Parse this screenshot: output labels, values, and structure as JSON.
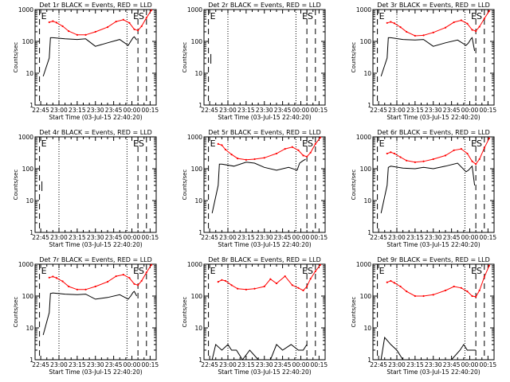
{
  "chart_data": [
    {
      "type": "line",
      "title": "Det 1r BLACK = Events, RED = LLD",
      "xlabel": "Start Time (03-Jul-15 22:40:20)",
      "ylabel": "Counts/sec",
      "yscale": "log",
      "ylim": [
        1,
        1000
      ],
      "xlim": [
        "22:40:20",
        "00:20:00"
      ],
      "x_ticks": [
        "22:45",
        "23:00",
        "23:15",
        "23:30",
        "23:45",
        "00:00",
        "00:15"
      ],
      "y_ticks": [
        "1",
        "10",
        "100",
        "1000"
      ],
      "dotted_lines": [
        "23:00",
        "23:56"
      ],
      "dashed_lines": [
        "22:44",
        "00:05",
        "00:12"
      ],
      "annotations": [
        "E",
        "ES"
      ],
      "series": [
        {
          "color": "#000000",
          "x": [
            "22:47",
            "22:52",
            "22:53",
            "22:55",
            "23:05",
            "23:15",
            "23:22",
            "23:30",
            "23:40",
            "23:50",
            "23:57",
            "23:59",
            "00:01",
            "00:02",
            "00:04"
          ],
          "values": [
            8,
            30,
            130,
            130,
            120,
            115,
            120,
            70,
            90,
            115,
            75,
            100,
            130,
            140,
            110
          ]
        },
        {
          "color": "#ff0000",
          "x": [
            "22:52",
            "22:55",
            "22:58",
            "23:03",
            "23:08",
            "23:15",
            "23:22",
            "23:30",
            "23:40",
            "23:47",
            "23:53",
            "23:58",
            "00:02",
            "00:05",
            "00:08",
            "00:12",
            "00:16"
          ],
          "values": [
            400,
            430,
            390,
            300,
            210,
            160,
            160,
            200,
            280,
            420,
            480,
            380,
            240,
            220,
            300,
            550,
            950
          ]
        }
      ]
    },
    {
      "type": "line",
      "title": "Det 2r BLACK = Events, RED = LLD",
      "xlabel": "Start Time (03-Jul-15 22:40:20)",
      "ylabel": "Counts/sec",
      "yscale": "log",
      "ylim": [
        1,
        1000
      ],
      "xlim": [
        "22:40:20",
        "00:20:00"
      ],
      "x_ticks": [
        "22:45",
        "23:00",
        "23:15",
        "23:30",
        "23:45",
        "00:00",
        "00:15"
      ],
      "y_ticks": [
        "1",
        "10",
        "100",
        "1000"
      ],
      "dotted_lines": [
        "23:00",
        "23:56"
      ],
      "dashed_lines": [
        "22:44",
        "00:05",
        "00:12"
      ],
      "annotations": [
        "E",
        "ES"
      ],
      "series": [
        {
          "color": "#000000",
          "x": [
            "22:46",
            "22:46"
          ],
          "values": [
            20,
            40
          ]
        }
      ]
    },
    {
      "type": "line",
      "title": "Det 3r BLACK = Events, RED = LLD",
      "xlabel": "Start Time (03-Jul-15 22:40:20)",
      "ylabel": "Counts/sec",
      "yscale": "log",
      "ylim": [
        1,
        1000
      ],
      "xlim": [
        "22:40:20",
        "00:20:00"
      ],
      "x_ticks": [
        "22:45",
        "23:00",
        "23:15",
        "23:30",
        "23:45",
        "00:00",
        "00:15"
      ],
      "y_ticks": [
        "1",
        "10",
        "100",
        "1000"
      ],
      "dotted_lines": [
        "23:00",
        "23:56"
      ],
      "dashed_lines": [
        "22:44",
        "00:05",
        "00:12"
      ],
      "annotations": [
        "E",
        "ES"
      ],
      "series": [
        {
          "color": "#000000",
          "x": [
            "22:47",
            "22:52",
            "22:53",
            "22:55",
            "23:05",
            "23:15",
            "23:22",
            "23:30",
            "23:40",
            "23:50",
            "23:57",
            "23:59",
            "00:01",
            "00:02",
            "00:04"
          ],
          "values": [
            8,
            30,
            130,
            130,
            115,
            110,
            115,
            70,
            90,
            110,
            75,
            90,
            120,
            130,
            50
          ]
        },
        {
          "color": "#ff0000",
          "x": [
            "22:52",
            "22:55",
            "22:58",
            "23:03",
            "23:08",
            "23:15",
            "23:22",
            "23:30",
            "23:40",
            "23:47",
            "23:53",
            "23:58",
            "00:02",
            "00:05",
            "00:08",
            "00:12",
            "00:16"
          ],
          "values": [
            380,
            410,
            370,
            280,
            200,
            150,
            155,
            190,
            270,
            400,
            460,
            360,
            230,
            210,
            290,
            520,
            900
          ]
        }
      ]
    },
    {
      "type": "line",
      "title": "Det 4r BLACK = Events, RED = LLD",
      "xlabel": "Start Time (03-Jul-15 22:40:20)",
      "ylabel": "Counts/sec",
      "yscale": "log",
      "ylim": [
        1,
        1000
      ],
      "xlim": [
        "22:40:20",
        "00:20:00"
      ],
      "x_ticks": [
        "22:45",
        "23:00",
        "23:15",
        "23:30",
        "23:45",
        "00:00",
        "00:15"
      ],
      "y_ticks": [
        "1",
        "10",
        "100",
        "1000"
      ],
      "dotted_lines": [
        "23:00",
        "23:56"
      ],
      "dashed_lines": [
        "22:44",
        "00:05",
        "00:12"
      ],
      "annotations": [
        "E",
        "ES"
      ],
      "series": [
        {
          "color": "#000000",
          "x": [
            "22:46",
            "22:46"
          ],
          "values": [
            20,
            40
          ]
        }
      ]
    },
    {
      "type": "line",
      "title": "Det 5r BLACK = Events, RED = LLD",
      "xlabel": "Start Time (03-Jul-15 22:40:20)",
      "ylabel": "Counts/sec",
      "yscale": "log",
      "ylim": [
        1,
        1000
      ],
      "xlim": [
        "22:40:20",
        "00:20:00"
      ],
      "x_ticks": [
        "22:45",
        "23:00",
        "23:15",
        "23:30",
        "23:45",
        "00:00",
        "00:15"
      ],
      "y_ticks": [
        "1",
        "10",
        "100",
        "1000"
      ],
      "dotted_lines": [
        "23:00",
        "23:56"
      ],
      "dashed_lines": [
        "22:44",
        "00:05",
        "00:12"
      ],
      "annotations": [
        "E",
        "ES"
      ],
      "series": [
        {
          "color": "#000000",
          "x": [
            "22:47",
            "22:52",
            "22:53",
            "22:55",
            "23:05",
            "23:15",
            "23:22",
            "23:30",
            "23:40",
            "23:50",
            "23:57",
            "23:59",
            "00:01",
            "00:02",
            "00:04"
          ],
          "values": [
            4,
            30,
            140,
            140,
            120,
            160,
            150,
            110,
            90,
            110,
            90,
            150,
            170,
            180,
            200
          ]
        },
        {
          "color": "#ff0000",
          "x": [
            "22:52",
            "22:55",
            "22:58",
            "23:03",
            "23:08",
            "23:15",
            "23:22",
            "23:30",
            "23:40",
            "23:47",
            "23:53",
            "23:58",
            "00:02",
            "00:05",
            "00:08",
            "00:12",
            "00:16"
          ],
          "values": [
            600,
            550,
            400,
            280,
            210,
            190,
            200,
            220,
            300,
            420,
            480,
            380,
            260,
            240,
            320,
            600,
            950
          ]
        }
      ]
    },
    {
      "type": "line",
      "title": "Det 6r BLACK = Events, RED = LLD",
      "xlabel": "Start Time (03-Jul-15 22:40:20)",
      "ylabel": "Counts/sec",
      "yscale": "log",
      "ylim": [
        1,
        1000
      ],
      "xlim": [
        "22:40:20",
        "00:20:00"
      ],
      "x_ticks": [
        "22:45",
        "23:00",
        "23:15",
        "23:30",
        "23:45",
        "00:00",
        "00:15"
      ],
      "y_ticks": [
        "1",
        "10",
        "100",
        "1000"
      ],
      "dotted_lines": [
        "23:00",
        "23:56"
      ],
      "dashed_lines": [
        "22:44",
        "00:05",
        "00:12"
      ],
      "annotations": [
        "E",
        "ES"
      ],
      "series": [
        {
          "color": "#000000",
          "x": [
            "22:47",
            "22:52",
            "22:53",
            "22:55",
            "23:05",
            "23:15",
            "23:22",
            "23:30",
            "23:40",
            "23:50",
            "23:57",
            "23:59",
            "00:01",
            "00:02",
            "00:04"
          ],
          "values": [
            4,
            30,
            110,
            120,
            105,
            100,
            110,
            100,
            120,
            150,
            80,
            90,
            110,
            120,
            30
          ]
        },
        {
          "color": "#ff0000",
          "x": [
            "22:52",
            "22:55",
            "22:58",
            "23:03",
            "23:08",
            "23:15",
            "23:22",
            "23:30",
            "23:40",
            "23:47",
            "23:53",
            "23:58",
            "00:02",
            "00:05",
            "00:08",
            "00:12",
            "00:16"
          ],
          "values": [
            300,
            330,
            300,
            230,
            180,
            160,
            170,
            200,
            260,
            380,
            420,
            300,
            170,
            140,
            200,
            450,
            900
          ]
        }
      ]
    },
    {
      "type": "line",
      "title": "Det 7r BLACK = Events, RED = LLD",
      "xlabel": "Start Time (03-Jul-15 22:40:20)",
      "ylabel": "Counts/sec",
      "yscale": "log",
      "ylim": [
        1,
        1000
      ],
      "xlim": [
        "22:40:20",
        "00:20:00"
      ],
      "x_ticks": [
        "22:45",
        "23:00",
        "23:15",
        "23:30",
        "23:45",
        "00:00",
        "00:15"
      ],
      "y_ticks": [
        "1",
        "10",
        "100",
        "1000"
      ],
      "dotted_lines": [
        "23:00",
        "23:56"
      ],
      "dashed_lines": [
        "22:44",
        "00:05",
        "00:12"
      ],
      "annotations": [
        "E",
        "ES"
      ],
      "series": [
        {
          "color": "#000000",
          "x": [
            "22:47",
            "22:52",
            "22:53",
            "22:55",
            "23:05",
            "23:15",
            "23:22",
            "23:30",
            "23:40",
            "23:50",
            "23:57",
            "23:59",
            "00:01",
            "00:02",
            "00:04"
          ],
          "values": [
            6,
            30,
            120,
            125,
            115,
            110,
            115,
            80,
            90,
            110,
            80,
            100,
            130,
            140,
            100
          ]
        },
        {
          "color": "#ff0000",
          "x": [
            "22:52",
            "22:55",
            "22:58",
            "23:03",
            "23:08",
            "23:15",
            "23:22",
            "23:30",
            "23:40",
            "23:47",
            "23:53",
            "23:58",
            "00:02",
            "00:05",
            "00:08",
            "00:12",
            "00:16"
          ],
          "values": [
            380,
            410,
            370,
            290,
            200,
            160,
            160,
            200,
            280,
            420,
            470,
            370,
            240,
            220,
            300,
            550,
            950
          ]
        }
      ]
    },
    {
      "type": "line",
      "title": "Det 8r BLACK = Events, RED = LLD",
      "xlabel": "Start Time (03-Jul-15 22:40:20)",
      "ylabel": "Counts/sec",
      "yscale": "log",
      "ylim": [
        1,
        1000
      ],
      "xlim": [
        "22:40:20",
        "00:20:00"
      ],
      "x_ticks": [
        "22:45",
        "23:00",
        "23:15",
        "23:30",
        "23:45",
        "00:00",
        "00:15"
      ],
      "y_ticks": [
        "1",
        "10",
        "100",
        "1000"
      ],
      "dotted_lines": [
        "23:00",
        "23:56"
      ],
      "dashed_lines": [
        "22:44",
        "00:05",
        "00:12"
      ],
      "annotations": [
        "E",
        "ES"
      ],
      "series": [
        {
          "color": "#000000",
          "x": [
            "22:47",
            "22:50",
            "22:55",
            "23:00",
            "23:03",
            "23:07",
            "23:12",
            "23:18",
            "23:25",
            "23:35",
            "23:40",
            "23:45",
            "23:52",
            "23:58",
            "00:02",
            "00:05"
          ],
          "values": [
            1,
            3,
            2,
            3,
            2,
            2,
            1,
            2,
            1,
            1,
            3,
            2,
            3,
            2,
            2,
            3
          ]
        },
        {
          "color": "#ff0000",
          "x": [
            "22:52",
            "22:55",
            "22:58",
            "23:03",
            "23:08",
            "23:15",
            "23:22",
            "23:30",
            "23:35",
            "23:40",
            "23:47",
            "23:53",
            "23:58",
            "00:02",
            "00:05",
            "00:08",
            "00:12",
            "00:16"
          ],
          "values": [
            280,
            320,
            300,
            220,
            170,
            160,
            170,
            200,
            340,
            250,
            420,
            220,
            180,
            150,
            200,
            350,
            600,
            950
          ]
        }
      ]
    },
    {
      "type": "line",
      "title": "Det 9r BLACK = Events, RED = LLD",
      "xlabel": "Start Time (03-Jul-15 22:40:20)",
      "ylabel": "Counts/sec",
      "yscale": "log",
      "ylim": [
        1,
        1000
      ],
      "xlim": [
        "22:40:20",
        "00:20:00"
      ],
      "x_ticks": [
        "22:45",
        "23:00",
        "23:15",
        "23:30",
        "23:45",
        "00:00",
        "00:15"
      ],
      "y_ticks": [
        "1",
        "10",
        "100",
        "1000"
      ],
      "dotted_lines": [
        "23:00",
        "23:56"
      ],
      "dashed_lines": [
        "22:44",
        "00:05",
        "00:12"
      ],
      "annotations": [
        "E",
        "ES"
      ],
      "series": [
        {
          "color": "#000000",
          "x": [
            "22:47",
            "22:50",
            "22:55",
            "23:00",
            "23:05",
            "23:15",
            "23:30",
            "23:45",
            "23:52",
            "23:55",
            "23:58",
            "00:02",
            "00:05"
          ],
          "values": [
            1,
            5,
            3,
            2,
            1,
            1,
            1,
            1,
            2,
            3,
            2,
            2,
            2
          ]
        },
        {
          "color": "#ff0000",
          "x": [
            "22:52",
            "22:55",
            "22:58",
            "23:03",
            "23:08",
            "23:15",
            "23:22",
            "23:30",
            "23:40",
            "23:47",
            "23:53",
            "23:58",
            "00:02",
            "00:05",
            "00:08",
            "00:12",
            "00:16"
          ],
          "values": [
            270,
            300,
            260,
            200,
            140,
            100,
            100,
            110,
            150,
            200,
            180,
            140,
            100,
            95,
            150,
            400,
            900
          ]
        }
      ]
    }
  ]
}
